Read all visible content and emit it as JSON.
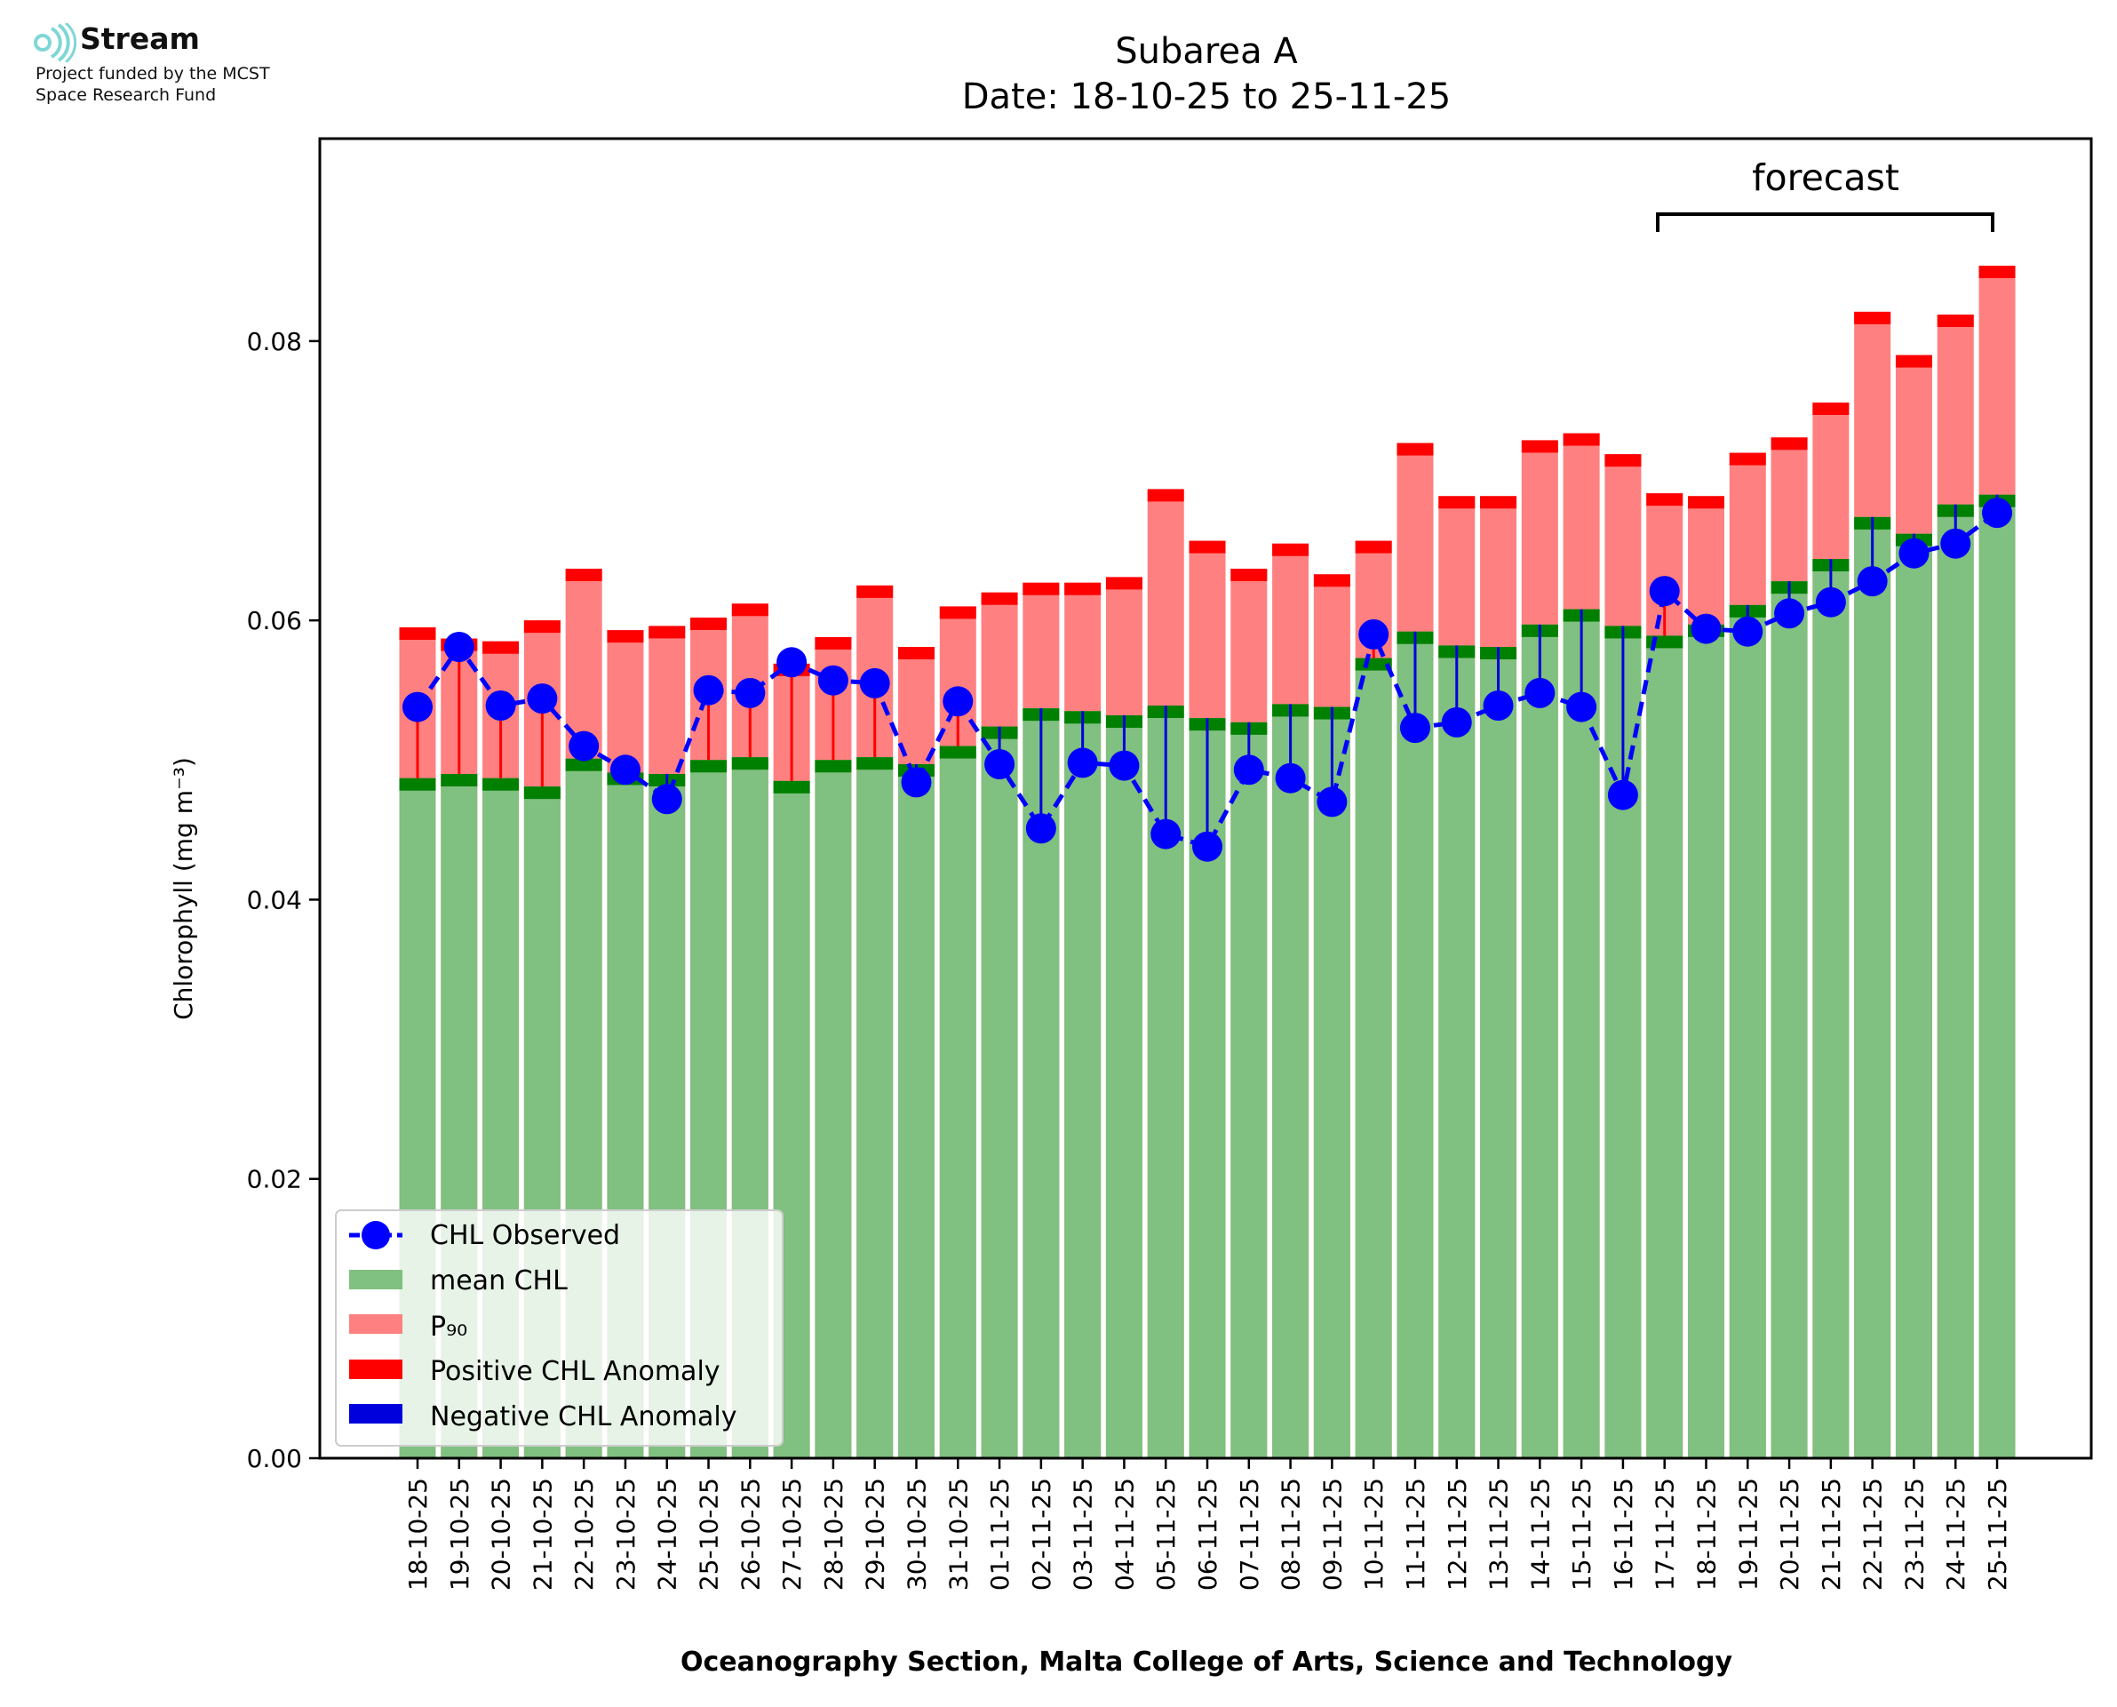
{
  "logo": {
    "name": "Stream",
    "line1": "Project funded by the MCST",
    "line2": "Space Research Fund",
    "color": "#7fd6d6"
  },
  "colors": {
    "mean": "#80c080",
    "mean_band": "#008000",
    "p90": "#ff8080",
    "p90_band": "#ff0000",
    "positive": "#ff0000",
    "negative": "#0000dd",
    "observed": "#0000ff"
  },
  "chart_data": {
    "type": "bar",
    "title": "Subarea A",
    "subtitle": "Date: 18-10-25 to 25-11-25",
    "xlabel": "Oceanography Section, Malta College of Arts, Science and Technology",
    "ylabel": "Chlorophyll (mg m⁻³)",
    "ylim": [
      0,
      0.0945
    ],
    "yticks": [
      "0.00",
      "0.02",
      "0.04",
      "0.06",
      "0.08"
    ],
    "grid": false,
    "legend_position": "lower-left",
    "forecast_label": "forecast",
    "forecast_range": [
      "17-11-25",
      "25-11-25"
    ],
    "categories": [
      "18-10-25",
      "19-10-25",
      "20-10-25",
      "21-10-25",
      "22-10-25",
      "23-10-25",
      "24-10-25",
      "25-10-25",
      "26-10-25",
      "27-10-25",
      "28-10-25",
      "29-10-25",
      "30-10-25",
      "31-10-25",
      "01-11-25",
      "02-11-25",
      "03-11-25",
      "04-11-25",
      "05-11-25",
      "06-11-25",
      "07-11-25",
      "08-11-25",
      "09-11-25",
      "10-11-25",
      "11-11-25",
      "12-11-25",
      "13-11-25",
      "14-11-25",
      "15-11-25",
      "16-11-25",
      "17-11-25",
      "18-11-25",
      "19-11-25",
      "20-11-25",
      "21-11-25",
      "22-11-25",
      "23-11-25",
      "24-11-25",
      "25-11-25"
    ],
    "series": [
      {
        "name": "mean CHL",
        "values": [
          0.0487,
          0.049,
          0.0487,
          0.0481,
          0.0501,
          0.0491,
          0.049,
          0.05,
          0.0502,
          0.0485,
          0.05,
          0.0502,
          0.0497,
          0.051,
          0.0524,
          0.0537,
          0.0535,
          0.0532,
          0.0539,
          0.053,
          0.0527,
          0.054,
          0.0538,
          0.0573,
          0.0592,
          0.0582,
          0.0581,
          0.0597,
          0.0608,
          0.0596,
          0.0589,
          0.0597,
          0.0611,
          0.0628,
          0.0644,
          0.0674,
          0.0662,
          0.0683,
          0.069
        ]
      },
      {
        "name": "P₉₀",
        "values": [
          0.0595,
          0.0587,
          0.0585,
          0.06,
          0.0637,
          0.0593,
          0.0596,
          0.0602,
          0.0612,
          0.0569,
          0.0588,
          0.0625,
          0.0581,
          0.061,
          0.062,
          0.0627,
          0.0627,
          0.0631,
          0.0694,
          0.0657,
          0.0637,
          0.0655,
          0.0633,
          0.0657,
          0.0727,
          0.0689,
          0.0689,
          0.0729,
          0.0734,
          0.0719,
          0.0691,
          0.0689,
          0.072,
          0.0731,
          0.0756,
          0.0821,
          0.079,
          0.0819,
          0.0854
        ]
      },
      {
        "name": "CHL Observed",
        "values": [
          0.0538,
          0.0581,
          0.0539,
          0.0544,
          0.051,
          0.0493,
          0.0472,
          0.055,
          0.0548,
          0.057,
          0.0557,
          0.0555,
          0.0484,
          0.0542,
          0.0497,
          0.0451,
          0.0498,
          0.0496,
          0.0447,
          0.0438,
          0.0493,
          0.0487,
          0.047,
          0.059,
          0.0523,
          0.0527,
          0.0539,
          0.0548,
          0.0538,
          0.0475,
          0.0621,
          0.0594,
          0.0592,
          0.0605,
          0.0613,
          0.0628,
          0.0648,
          0.0655,
          0.0677
        ]
      }
    ],
    "legend": [
      "CHL Observed",
      "mean CHL",
      "P₉₀",
      "Positive CHL Anomaly",
      "Negative CHL Anomaly"
    ]
  }
}
